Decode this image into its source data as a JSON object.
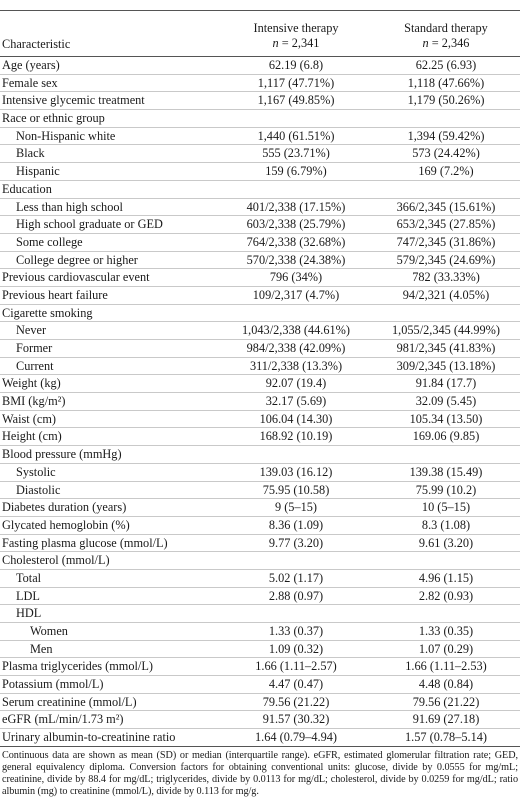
{
  "header": {
    "characteristic": "Characteristic",
    "col1_title": "Intensive therapy",
    "col1_n_label": "n",
    "col1_n_value": " = 2,341",
    "col2_title": "Standard therapy",
    "col2_n_label": "n",
    "col2_n_value": " = 2,346"
  },
  "rows": [
    {
      "label": "Age (years)",
      "v1": "62.19 (6.8)",
      "v2": "62.25 (6.93)",
      "indent": 0
    },
    {
      "label": "Female sex",
      "v1": "1,117 (47.71%)",
      "v2": "1,118 (47.66%)",
      "indent": 0
    },
    {
      "label": "Intensive glycemic treatment",
      "v1": "1,167 (49.85%)",
      "v2": "1,179 (50.26%)",
      "indent": 0
    },
    {
      "label": "Race or ethnic group",
      "v1": "",
      "v2": "",
      "indent": 0
    },
    {
      "label": "Non-Hispanic white",
      "v1": "1,440 (61.51%)",
      "v2": "1,394 (59.42%)",
      "indent": 1
    },
    {
      "label": "Black",
      "v1": "555 (23.71%)",
      "v2": "573 (24.42%)",
      "indent": 1
    },
    {
      "label": "Hispanic",
      "v1": "159 (6.79%)",
      "v2": "169 (7.2%)",
      "indent": 1
    },
    {
      "label": "Education",
      "v1": "",
      "v2": "",
      "indent": 0
    },
    {
      "label": "Less than high school",
      "v1": "401/2,338 (17.15%)",
      "v2": "366/2,345 (15.61%)",
      "indent": 1
    },
    {
      "label": "High school graduate or GED",
      "v1": "603/2,338 (25.79%)",
      "v2": "653/2,345 (27.85%)",
      "indent": 1
    },
    {
      "label": "Some college",
      "v1": "764/2,338 (32.68%)",
      "v2": "747/2,345 (31.86%)",
      "indent": 1
    },
    {
      "label": "College degree or higher",
      "v1": "570/2,338 (24.38%)",
      "v2": "579/2,345 (24.69%)",
      "indent": 1
    },
    {
      "label": "Previous cardiovascular event",
      "v1": "796 (34%)",
      "v2": "782 (33.33%)",
      "indent": 0
    },
    {
      "label": "Previous heart failure",
      "v1": "109/2,317 (4.7%)",
      "v2": "94/2,321 (4.05%)",
      "indent": 0
    },
    {
      "label": "Cigarette smoking",
      "v1": "",
      "v2": "",
      "indent": 0
    },
    {
      "label": "Never",
      "v1": "1,043/2,338 (44.61%)",
      "v2": "1,055/2,345 (44.99%)",
      "indent": 1
    },
    {
      "label": "Former",
      "v1": "984/2,338 (42.09%)",
      "v2": "981/2,345 (41.83%)",
      "indent": 1
    },
    {
      "label": "Current",
      "v1": "311/2,338 (13.3%)",
      "v2": "309/2,345 (13.18%)",
      "indent": 1
    },
    {
      "label": "Weight (kg)",
      "v1": "92.07 (19.4)",
      "v2": "91.84 (17.7)",
      "indent": 0
    },
    {
      "label": "BMI (kg/m²)",
      "v1": "32.17 (5.69)",
      "v2": "32.09 (5.45)",
      "indent": 0
    },
    {
      "label": "Waist (cm)",
      "v1": "106.04 (14.30)",
      "v2": "105.34 (13.50)",
      "indent": 0
    },
    {
      "label": "Height (cm)",
      "v1": "168.92 (10.19)",
      "v2": "169.06 (9.85)",
      "indent": 0
    },
    {
      "label": "Blood pressure (mmHg)",
      "v1": "",
      "v2": "",
      "indent": 0
    },
    {
      "label": "Systolic",
      "v1": "139.03 (16.12)",
      "v2": "139.38 (15.49)",
      "indent": 1
    },
    {
      "label": "Diastolic",
      "v1": "75.95 (10.58)",
      "v2": "75.99 (10.2)",
      "indent": 1
    },
    {
      "label": "Diabetes duration (years)",
      "v1": "9 (5–15)",
      "v2": "10 (5–15)",
      "indent": 0
    },
    {
      "label": "Glycated hemoglobin (%)",
      "v1": "8.36 (1.09)",
      "v2": "8.3 (1.08)",
      "indent": 0
    },
    {
      "label": "Fasting plasma glucose (mmol/L)",
      "v1": "9.77 (3.20)",
      "v2": "9.61 (3.20)",
      "indent": 0
    },
    {
      "label": "Cholesterol (mmol/L)",
      "v1": "",
      "v2": "",
      "indent": 0
    },
    {
      "label": "Total",
      "v1": "5.02 (1.17)",
      "v2": "4.96 (1.15)",
      "indent": 1
    },
    {
      "label": "LDL",
      "v1": "2.88 (0.97)",
      "v2": "2.82 (0.93)",
      "indent": 1
    },
    {
      "label": "HDL",
      "v1": "",
      "v2": "",
      "indent": 1
    },
    {
      "label": "Women",
      "v1": "1.33 (0.37)",
      "v2": "1.33 (0.35)",
      "indent": 2
    },
    {
      "label": "Men",
      "v1": "1.09 (0.32)",
      "v2": "1.07 (0.29)",
      "indent": 2
    },
    {
      "label": "Plasma triglycerides (mmol/L)",
      "v1": "1.66 (1.11–2.57)",
      "v2": "1.66 (1.11–2.53)",
      "indent": 0
    },
    {
      "label": "Potassium (mmol/L)",
      "v1": "4.47 (0.47)",
      "v2": "4.48 (0.84)",
      "indent": 0
    },
    {
      "label": "Serum creatinine (mmol/L)",
      "v1": "79.56 (21.22)",
      "v2": "79.56 (21.22)",
      "indent": 0
    },
    {
      "label": "eGFR (mL/min/1.73 m²)",
      "v1": "91.57 (30.32)",
      "v2": "91.69 (27.18)",
      "indent": 0
    },
    {
      "label": "Urinary albumin-to-creatinine ratio",
      "v1": "1.64 (0.79–4.94)",
      "v2": "1.57 (0.78–5.14)",
      "indent": 0
    }
  ],
  "footnote": "Continuous data are shown as mean (SD) or median (interquartile range). eGFR, estimated glomerular filtration rate; GED, general equivalency diploma. Conversion factors for obtaining conventional units: glucose, divide by 0.0555 for mg/mL; creatinine, divide by 88.4 for mg/dL; triglycerides, divide by 0.0113 for mg/dL; cholesterol, divide by 0.0259 for mg/dL; ratio albumin (mg) to creatinine (mmol/L), divide by 0.113 for mg/g."
}
